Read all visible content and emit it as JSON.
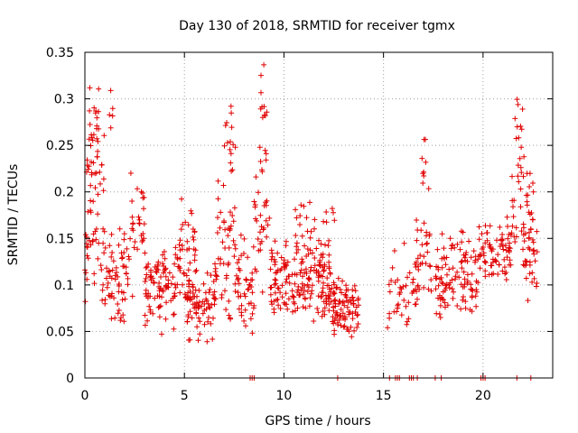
{
  "chart_data": {
    "type": "scatter",
    "title": "Day 130 of 2018, SRMTID for receiver tgmx",
    "xlabel": "GPS time / hours",
    "ylabel": "SRMTID / TECUs",
    "xlim": [
      0,
      23.5
    ],
    "ylim": [
      0,
      0.35
    ],
    "xticks": [
      0,
      5,
      10,
      15,
      20
    ],
    "xtick_labels": [
      "0",
      "5",
      "10",
      "15",
      "20"
    ],
    "yticks": [
      0,
      0.05,
      0.1,
      0.15,
      0.2,
      0.25,
      0.3,
      0.35
    ],
    "ytick_labels": [
      "0",
      "0.05",
      "0.1",
      "0.15",
      "0.2",
      "0.25",
      "0.3",
      "0.35"
    ],
    "grid": true,
    "marker": "+",
    "series": [
      {
        "name": "SRMTID",
        "color": "#e00000",
        "clusters": [
          {
            "x": [
              0.0,
              1.0
            ],
            "center": 0.17,
            "spread": 0.07,
            "count": 60
          },
          {
            "x": [
              0.2,
              0.7
            ],
            "center": 0.27,
            "spread": 0.04,
            "count": 22
          },
          {
            "x": [
              1.0,
              2.2
            ],
            "center": 0.11,
            "spread": 0.04,
            "count": 60
          },
          {
            "x": [
              1.2,
              1.4
            ],
            "center": 0.28,
            "spread": 0.02,
            "count": 5
          },
          {
            "x": [
              2.2,
              3.0
            ],
            "center": 0.16,
            "spread": 0.05,
            "count": 30
          },
          {
            "x": [
              3.0,
              4.6
            ],
            "center": 0.1,
            "spread": 0.035,
            "count": 90
          },
          {
            "x": [
              4.6,
              5.6
            ],
            "center": 0.13,
            "spread": 0.045,
            "count": 55
          },
          {
            "x": [
              5.0,
              6.6
            ],
            "center": 0.08,
            "spread": 0.03,
            "count": 70
          },
          {
            "x": [
              6.5,
              7.6
            ],
            "center": 0.14,
            "spread": 0.06,
            "count": 50
          },
          {
            "x": [
              7.0,
              7.6
            ],
            "center": 0.25,
            "spread": 0.03,
            "count": 14
          },
          {
            "x": [
              7.6,
              8.5
            ],
            "center": 0.1,
            "spread": 0.04,
            "count": 45
          },
          {
            "x": [
              8.5,
              9.3
            ],
            "center": 0.17,
            "spread": 0.06,
            "count": 35
          },
          {
            "x": [
              8.8,
              9.2
            ],
            "center": 0.29,
            "spread": 0.03,
            "count": 10
          },
          {
            "x": [
              9.3,
              12.4
            ],
            "center": 0.1,
            "spread": 0.035,
            "count": 180
          },
          {
            "x": [
              10.2,
              12.6
            ],
            "center": 0.16,
            "spread": 0.03,
            "count": 30
          },
          {
            "x": [
              12.4,
              13.8
            ],
            "center": 0.075,
            "spread": 0.025,
            "count": 90
          },
          {
            "x": [
              15.2,
              16.8
            ],
            "center": 0.09,
            "spread": 0.035,
            "count": 45
          },
          {
            "x": [
              16.6,
              17.4
            ],
            "center": 0.13,
            "spread": 0.06,
            "count": 30
          },
          {
            "x": [
              16.9,
              17.3
            ],
            "center": 0.23,
            "spread": 0.03,
            "count": 8
          },
          {
            "x": [
              17.6,
              19.8
            ],
            "center": 0.11,
            "spread": 0.035,
            "count": 110
          },
          {
            "x": [
              19.8,
              21.4
            ],
            "center": 0.14,
            "spread": 0.03,
            "count": 75
          },
          {
            "x": [
              21.4,
              22.6
            ],
            "center": 0.18,
            "spread": 0.06,
            "count": 45
          },
          {
            "x": [
              21.6,
              22.0
            ],
            "center": 0.28,
            "spread": 0.03,
            "count": 8
          },
          {
            "x": [
              22.0,
              22.8
            ],
            "center": 0.13,
            "spread": 0.04,
            "count": 30
          }
        ],
        "zero_points": [
          8.3,
          8.4,
          8.5,
          12.7,
          15.3,
          15.6,
          15.7,
          15.8,
          16.3,
          16.4,
          16.5,
          16.7,
          17.6,
          17.9,
          19.9,
          20.0,
          20.1,
          21.7,
          22.4
        ]
      }
    ]
  }
}
